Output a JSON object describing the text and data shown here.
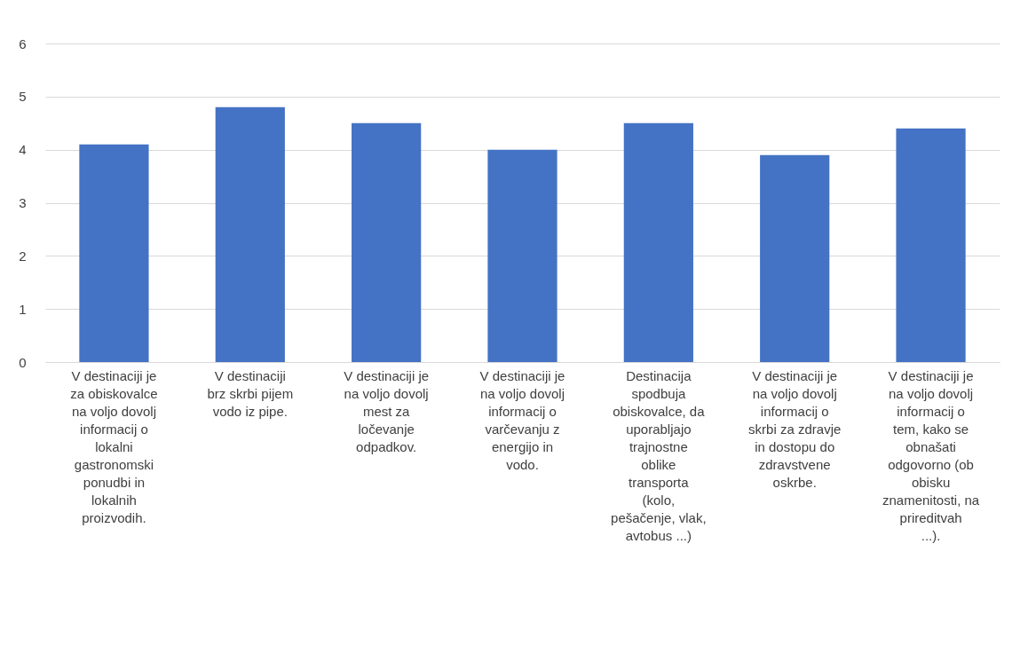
{
  "chart_data": {
    "type": "bar",
    "categories": [
      "V destinaciji je za obiskovalce na voljo dovolj informacij o lokalni gastronomski ponudbi in lokalnih proizvodih.",
      "V destinaciji brz skrbi pijem vodo iz pipe.",
      "V destinaciji je na voljo dovolj mest za ločevanje odpadkov.",
      "V destinaciji je na voljo dovolj informacij o varčevanju z energijo in vodo.",
      "Destinacija spodbuja obiskovalce, da uporabljajo trajnostne oblike transporta (kolo, pešačenje, vlak, avtobus ...)",
      "V destinaciji je na voljo dovolj informacij o skrbi za zdravje in dostopu do zdravstvene oskrbe.",
      "V destinaciji je na voljo dovolj informacij o tem, kako se obnašati odgovorno (ob obisku znamenitosti, na prireditvah ...)."
    ],
    "values": [
      4.1,
      4.8,
      4.5,
      4.0,
      4.5,
      3.9,
      4.4
    ],
    "color": "#4472c4",
    "ylim": [
      0,
      6
    ],
    "yticks": [
      0,
      1,
      2,
      3,
      4,
      5,
      6
    ],
    "grid": true
  }
}
